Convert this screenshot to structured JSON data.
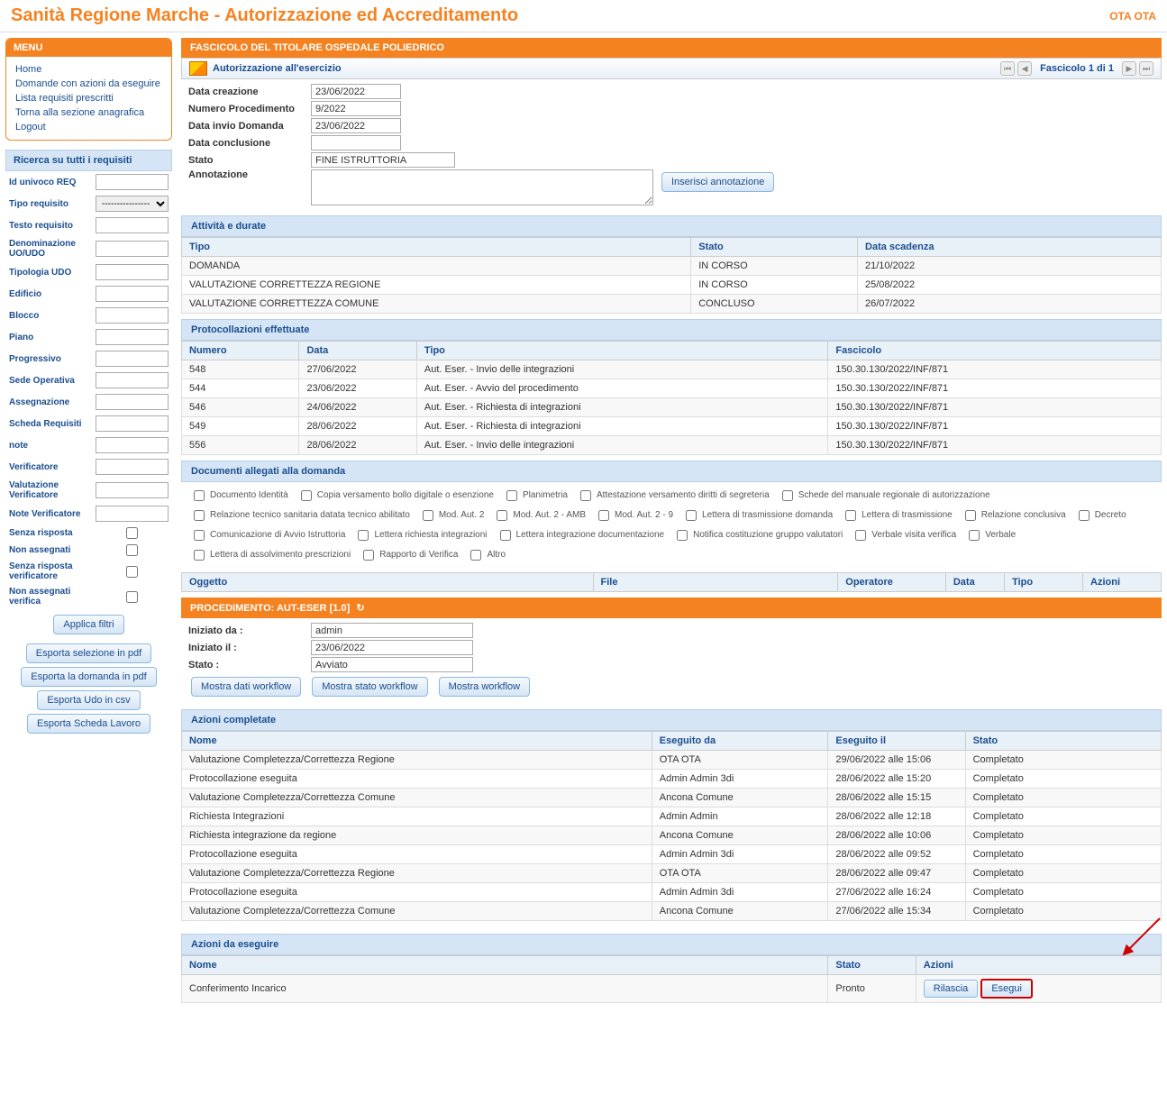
{
  "app": {
    "title": "Sanità Regione Marche - Autorizzazione ed Accreditamento",
    "user": "OTA OTA"
  },
  "menu": {
    "title": "MENU",
    "items": [
      "Home",
      "Domande con azioni da eseguire",
      "Lista requisiti prescritti",
      "Torna alla sezione anagrafica",
      "Logout"
    ]
  },
  "search": {
    "title": "Ricerca su tutti i requisiti",
    "tipo_placeholder": "----------------",
    "fields": [
      "Id univoco REQ",
      "Tipo requisito",
      "Testo requisito",
      "Denominazione UO/UDO",
      "Tipologia UDO",
      "Edificio",
      "Blocco",
      "Piano",
      "Progressivo",
      "Sede Operativa",
      "Assegnazione",
      "Scheda Requisiti",
      "note",
      "Verificatore",
      "Valutazione Verificatore",
      "Note Verificatore"
    ],
    "checks": [
      "Senza risposta",
      "Non assegnati",
      "Senza risposta verificatore",
      "Non assegnati verifica"
    ],
    "apply": "Applica filtri",
    "exports": [
      "Esporta selezione in pdf",
      "Esporta la domanda in pdf",
      "Esporta Udo in csv",
      "Esporta Scheda Lavoro"
    ]
  },
  "fascicolo": {
    "header": "FASCICOLO DEL TITOLARE OSPEDALE POLIEDRICO",
    "subheader": "Autorizzazione all'esercizio",
    "pager": "Fascicolo 1 di 1",
    "fields": {
      "data_creazione_label": "Data creazione",
      "data_creazione": "23/06/2022",
      "numero_label": "Numero Procedimento",
      "numero": "9/2022",
      "data_invio_label": "Data invio Domanda",
      "data_invio": "23/06/2022",
      "data_conclusione_label": "Data conclusione",
      "data_conclusione": "",
      "stato_label": "Stato",
      "stato": "FINE ISTRUTTORIA",
      "annotazione_label": "Annotazione",
      "annotazione": "",
      "insert_btn": "Inserisci annotazione"
    }
  },
  "attivita": {
    "title": "Attività e durate",
    "columns": [
      "Tipo",
      "Stato",
      "Data scadenza"
    ],
    "rows": [
      [
        "DOMANDA",
        "IN CORSO",
        "21/10/2022"
      ],
      [
        "VALUTAZIONE CORRETTEZZA REGIONE",
        "IN CORSO",
        "25/08/2022"
      ],
      [
        "VALUTAZIONE CORRETTEZZA COMUNE",
        "CONCLUSO",
        "26/07/2022"
      ]
    ]
  },
  "protocollazioni": {
    "title": "Protocollazioni effettuate",
    "columns": [
      "Numero",
      "Data",
      "Tipo",
      "Fascicolo"
    ],
    "rows": [
      [
        "548",
        "27/06/2022",
        "Aut. Eser. - Invio delle integrazioni",
        "150.30.130/2022/INF/871"
      ],
      [
        "544",
        "23/06/2022",
        "Aut. Eser. - Avvio del procedimento",
        "150.30.130/2022/INF/871"
      ],
      [
        "546",
        "24/06/2022",
        "Aut. Eser. - Richiesta di integrazioni",
        "150.30.130/2022/INF/871"
      ],
      [
        "549",
        "28/06/2022",
        "Aut. Eser. - Richiesta di integrazioni",
        "150.30.130/2022/INF/871"
      ],
      [
        "556",
        "28/06/2022",
        "Aut. Eser. - Invio delle integrazioni",
        "150.30.130/2022/INF/871"
      ]
    ]
  },
  "documenti": {
    "title": "Documenti allegati alla domanda",
    "checks": [
      "Documento Identità",
      "Copia versamento bollo digitale o esenzione",
      "Planimetria",
      "Attestazione versamento diritti di segreteria",
      "Schede del manuale regionale di autorizzazione",
      "Relazione tecnico sanitaria datata tecnico abilitato",
      "Mod. Aut. 2",
      "Mod. Aut. 2 - AMB",
      "Mod. Aut. 2 - 9",
      "Lettera di trasmissione domanda",
      "Lettera di trasmissione",
      "Relazione conclusiva",
      "Decreto",
      "Comunicazione di Avvio Istruttoria",
      "Lettera richiesta integrazioni",
      "Lettera integrazione documentazione",
      "Notifica costituzione gruppo valutatori",
      "Verbale visita verifica",
      "Verbale",
      "Lettera di assolvimento prescrizioni",
      "Rapporto di Verifica",
      "Altro"
    ],
    "columns": [
      "Oggetto",
      "File",
      "Operatore",
      "Data",
      "Tipo",
      "Azioni"
    ]
  },
  "procedimento": {
    "header": "PROCEDIMENTO: AUT-ESER [1.0]",
    "iniziato_da_label": "Iniziato da :",
    "iniziato_da": "admin",
    "iniziato_il_label": "Iniziato il :",
    "iniziato_il": "23/06/2022",
    "stato_label": "Stato :",
    "stato": "Avviato",
    "buttons": [
      "Mostra dati workflow",
      "Mostra stato workflow",
      "Mostra workflow"
    ]
  },
  "completate": {
    "title": "Azioni completate",
    "columns": [
      "Nome",
      "Eseguito da",
      "Eseguito il",
      "Stato"
    ],
    "rows": [
      [
        "Valutazione Completezza/Correttezza Regione",
        "OTA OTA",
        "29/06/2022 alle 15:06",
        "Completato"
      ],
      [
        "Protocollazione eseguita",
        "Admin Admin 3di",
        "28/06/2022 alle 15:20",
        "Completato"
      ],
      [
        "Valutazione Completezza/Correttezza Comune",
        "Ancona Comune",
        "28/06/2022 alle 15:15",
        "Completato"
      ],
      [
        "Richiesta Integrazioni",
        "Admin Admin",
        "28/06/2022 alle 12:18",
        "Completato"
      ],
      [
        "Richiesta integrazione da regione",
        "Ancona Comune",
        "28/06/2022 alle 10:06",
        "Completato"
      ],
      [
        "Protocollazione eseguita",
        "Admin Admin 3di",
        "28/06/2022 alle 09:52",
        "Completato"
      ],
      [
        "Valutazione Completezza/Correttezza Regione",
        "OTA OTA",
        "28/06/2022 alle 09:47",
        "Completato"
      ],
      [
        "Protocollazione eseguita",
        "Admin Admin 3di",
        "27/06/2022 alle 16:24",
        "Completato"
      ],
      [
        "Valutazione Completezza/Correttezza Comune",
        "Ancona Comune",
        "27/06/2022 alle 15:34",
        "Completato"
      ]
    ]
  },
  "daeseguire": {
    "title": "Azioni da eseguire",
    "columns": [
      "Nome",
      "Stato",
      "Azioni"
    ],
    "row": {
      "nome": "Conferimento Incarico",
      "stato": "Pronto"
    },
    "btn_rilascia": "Rilascia",
    "btn_esegui": "Esegui"
  }
}
